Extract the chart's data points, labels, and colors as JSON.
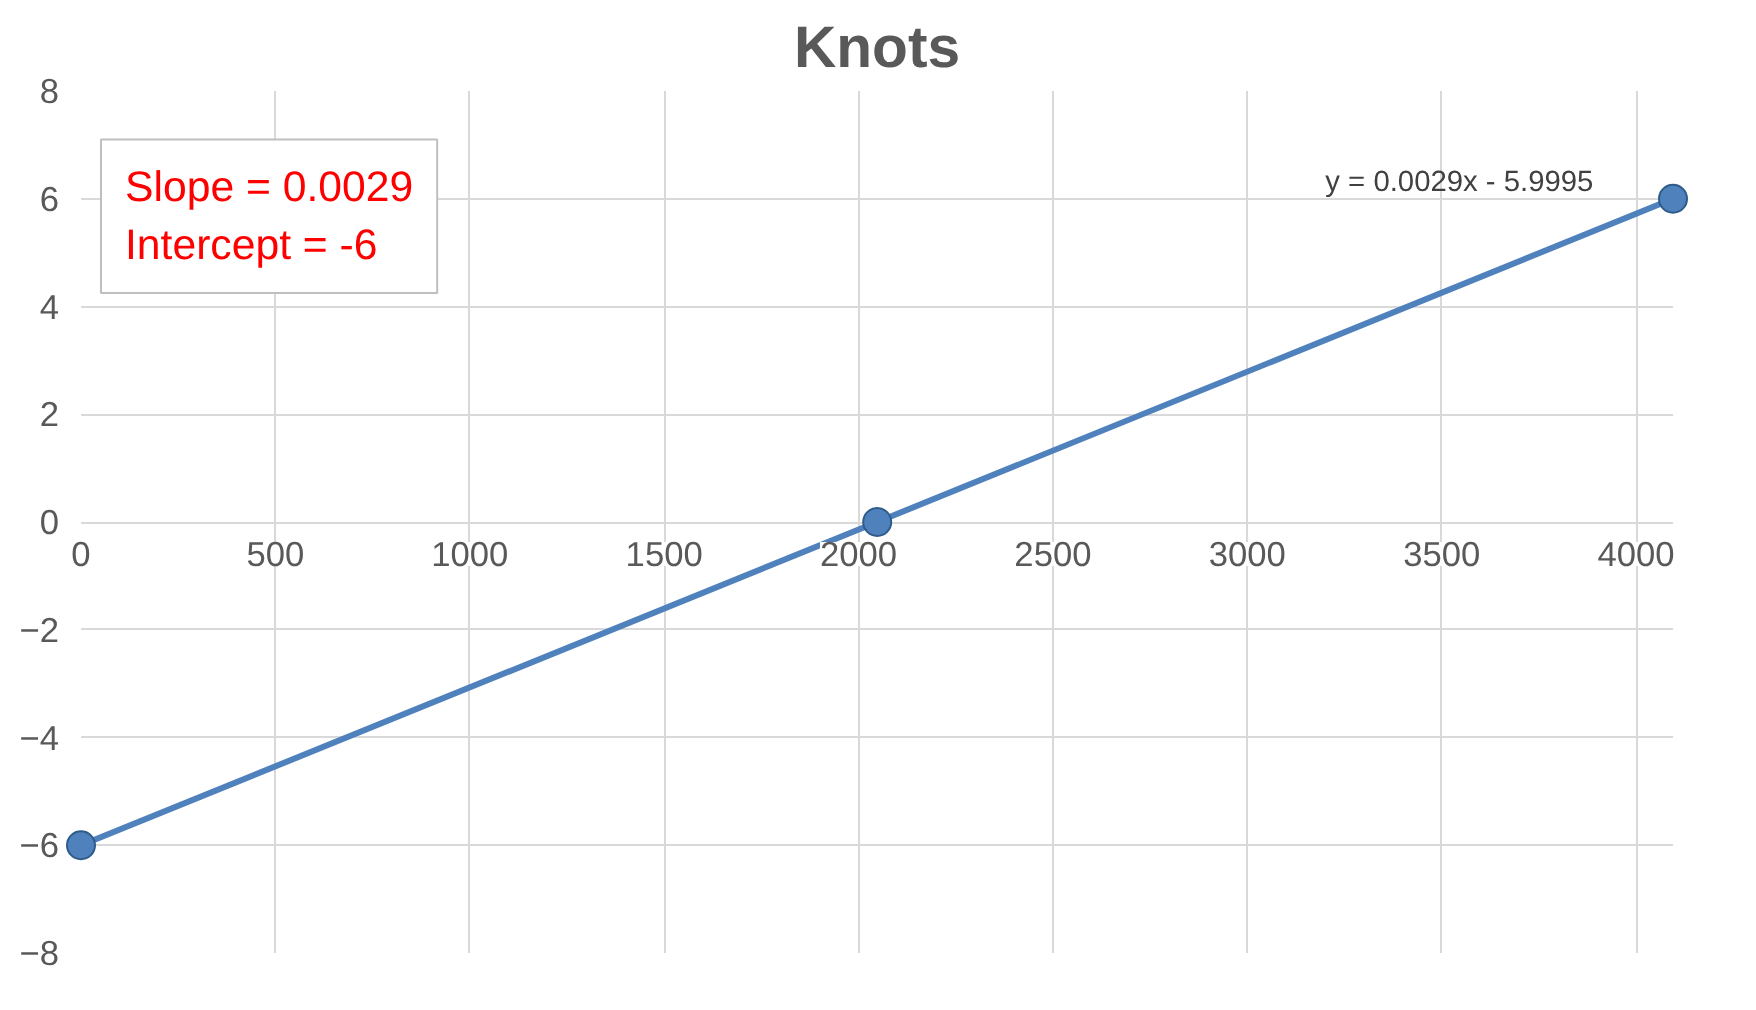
{
  "chart_data": {
    "type": "line",
    "title": "Knots",
    "x": [
      0,
      2048,
      4095
    ],
    "series": [
      {
        "color": "#4f81bd",
        "values": [
          -6,
          0,
          6
        ]
      }
    ],
    "xlim": [
      0,
      4095
    ],
    "xticks": [
      0,
      500,
      1000,
      1500,
      2000,
      2500,
      3000,
      3500,
      4000
    ],
    "ylim": [
      -8,
      8
    ],
    "yticks": [
      -8,
      -6,
      -4,
      -2,
      0,
      2,
      4,
      6,
      8
    ],
    "grid": true,
    "marker": "circle",
    "line_style": "solid",
    "annotations": [
      "Slope = 0.0029",
      "Intercept = -6",
      "y = 0.0029x - 5.9995"
    ]
  }
}
